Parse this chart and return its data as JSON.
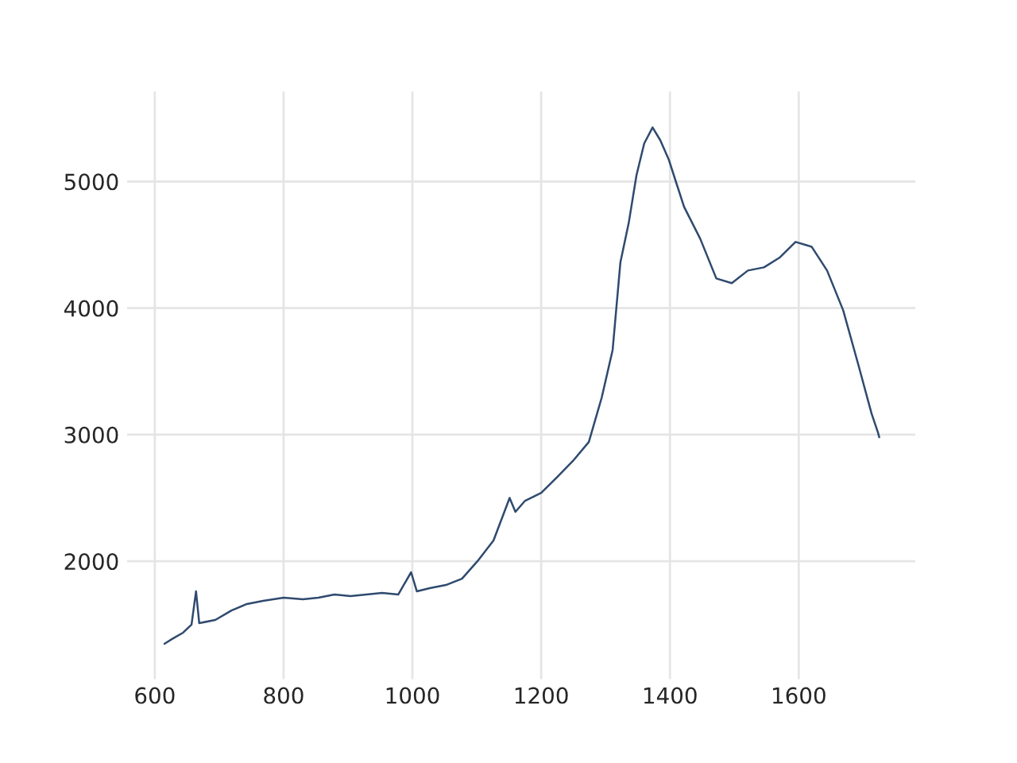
{
  "chart_data": {
    "type": "line",
    "x": [
      615,
      627,
      644,
      657,
      664,
      669,
      694,
      719,
      743,
      768,
      800,
      830,
      854,
      879,
      904,
      953,
      978,
      998,
      1007,
      1027,
      1052,
      1077,
      1101,
      1126,
      1151,
      1160,
      1175,
      1200,
      1225,
      1249,
      1274,
      1294,
      1311,
      1323,
      1336,
      1348,
      1360,
      1373,
      1385,
      1398,
      1410,
      1422,
      1447,
      1472,
      1496,
      1521,
      1546,
      1570,
      1595,
      1620,
      1644,
      1669,
      1693,
      1713,
      1723,
      1725
    ],
    "series": [
      {
        "color": "#2f4a6e",
        "values": [
          1348,
          1386,
          1436,
          1499,
          1762,
          1511,
          1536,
          1611,
          1662,
          1687,
          1712,
          1700,
          1712,
          1737,
          1725,
          1750,
          1737,
          1913,
          1762,
          1787,
          1812,
          1862,
          2000,
          2164,
          2500,
          2390,
          2478,
          2540,
          2666,
          2791,
          2942,
          3293,
          3670,
          4360,
          4674,
          5050,
          5301,
          5427,
          5326,
          5176,
          4987,
          4799,
          4548,
          4234,
          4197,
          4297,
          4322,
          4398,
          4523,
          4485,
          4297,
          3983,
          3544,
          3168,
          3017,
          2980
        ]
      }
    ],
    "xlim": [
      557,
      1781
    ],
    "ylim": [
      1069,
      5711
    ],
    "xticks": [
      600,
      800,
      1000,
      1200,
      1400,
      1600
    ],
    "yticks": [
      2000,
      3000,
      4000,
      5000
    ],
    "grid": true,
    "marker": "none",
    "line_style": "solid"
  }
}
